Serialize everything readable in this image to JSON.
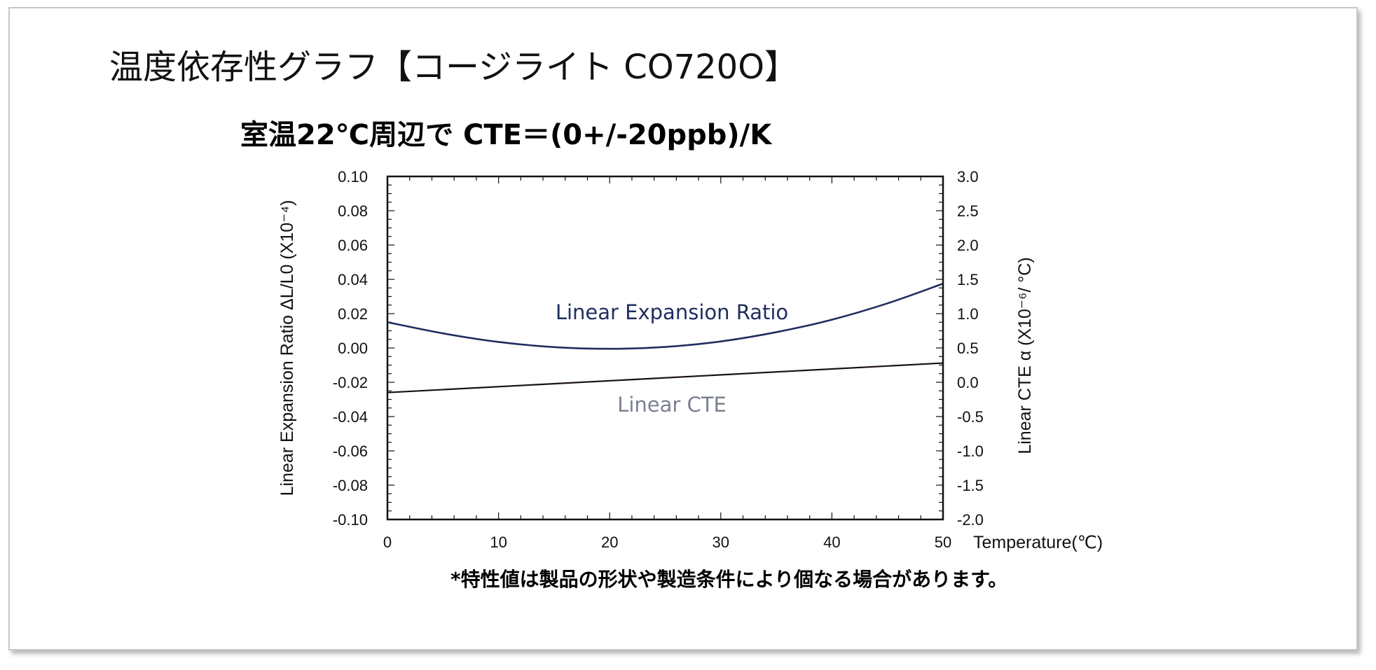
{
  "page": {
    "title": "温度依存性グラフ【コージライト CO720O】",
    "subtitle": "室温22℃周辺で CTE＝(0+/-20ppb)/K",
    "note": "*特性値は製品の形状や製造条件により個なる場合があります。"
  },
  "colors": {
    "expansion": "#1f2d5e",
    "cte": "#1a1010",
    "cte_label": "#7a8190",
    "axis": "#111111"
  },
  "chart_data": {
    "type": "line",
    "xlabel": "Temperature(℃)",
    "ylabel_left": "Linear Expansion Ratio ΔL/L0 (X10⁻⁴)",
    "ylabel_right": "Linear CTE α (X10⁻⁶/ °C)",
    "xlim": [
      0,
      50
    ],
    "ylim_left": [
      -0.1,
      0.1
    ],
    "ylim_right": [
      -2.0,
      3.0
    ],
    "x_ticks": [
      "0",
      "10",
      "20",
      "30",
      "40",
      "50"
    ],
    "y_left_ticks": [
      "0.10",
      "0.08",
      "0.06",
      "0.04",
      "0.02",
      "0.00",
      "-0.02",
      "-0.04",
      "-0.06",
      "-0.08",
      "-0.10"
    ],
    "y_right_ticks": [
      "3.0",
      "2.5",
      "2.0",
      "1.5",
      "1.0",
      "0.5",
      "0.0",
      "-0.5",
      "-1.0",
      "-1.5",
      "-2.0"
    ],
    "grid": false,
    "series": [
      {
        "name": "Linear Expansion Ratio",
        "axis": "left",
        "x": [
          0,
          5,
          10,
          15,
          20,
          25,
          30,
          35,
          40,
          45,
          50
        ],
        "values": [
          0.015,
          0.0085,
          0.0035,
          0.0005,
          -0.0005,
          0.0006,
          0.0038,
          0.0092,
          0.0165,
          0.026,
          0.0375
        ]
      },
      {
        "name": "Linear CTE",
        "axis": "right",
        "x": [
          0,
          50
        ],
        "values": [
          -0.15,
          0.28
        ]
      }
    ]
  }
}
